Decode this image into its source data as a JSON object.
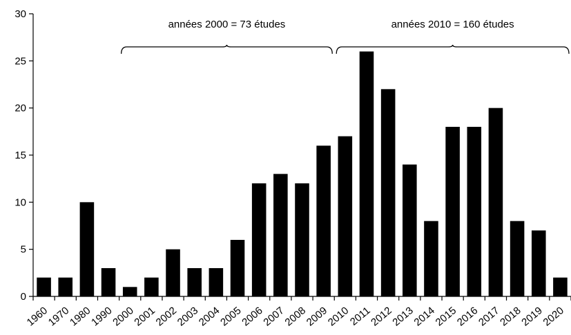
{
  "chart_data": {
    "type": "bar",
    "title": "",
    "xlabel": "",
    "ylabel": "",
    "categories": [
      "1960",
      "1970",
      "1980",
      "1990",
      "2000",
      "2001",
      "2002",
      "2003",
      "2004",
      "2005",
      "2006",
      "2007",
      "2008",
      "2009",
      "2010",
      "2011",
      "2012",
      "2013",
      "2014",
      "2015",
      "2016",
      "2017",
      "2018",
      "2019",
      "2020"
    ],
    "values": [
      2,
      2,
      10,
      3,
      1,
      2,
      5,
      3,
      3,
      6,
      12,
      13,
      12,
      16,
      17,
      26,
      22,
      14,
      8,
      18,
      18,
      20,
      8,
      7,
      2
    ],
    "ylim": [
      0,
      30
    ],
    "yticks": [
      0,
      5,
      10,
      15,
      20,
      25,
      30
    ],
    "grid": false,
    "bar_color": "#000000",
    "annotations": [
      {
        "text": "années 2000 = 73 études",
        "from": "2000",
        "to": "2009"
      },
      {
        "text": "années 2010 = 160 études",
        "from": "2010",
        "to": "2020"
      }
    ]
  }
}
